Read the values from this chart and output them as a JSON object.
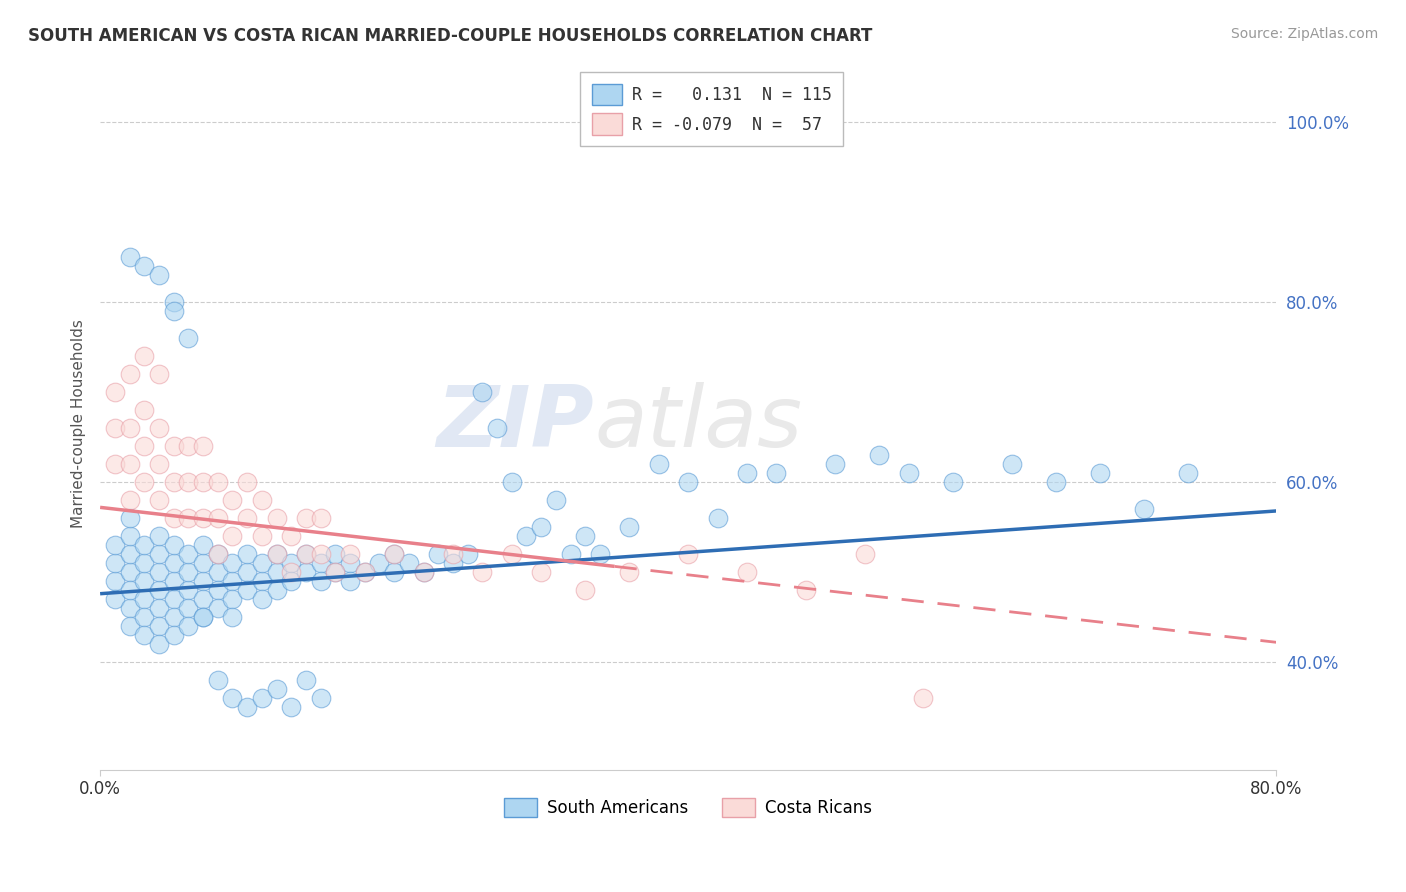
{
  "title": "SOUTH AMERICAN VS COSTA RICAN MARRIED-COUPLE HOUSEHOLDS CORRELATION CHART",
  "source_text": "Source: ZipAtlas.com",
  "ylabel": "Married-couple Households",
  "ytick_labels": [
    "100.0%",
    "80.0%",
    "60.0%",
    "40.0%"
  ],
  "ytick_vals": [
    1.0,
    0.8,
    0.6,
    0.4
  ],
  "xlim": [
    0.0,
    0.8
  ],
  "ylim": [
    0.28,
    1.05
  ],
  "legend_r1": "R =   0.131",
  "legend_n1": "N = 115",
  "legend_r2": "R = -0.079",
  "legend_n2": "N =  57",
  "legend_label1": "South Americans",
  "legend_label2": "Costa Ricans",
  "color_blue_fill": "#AED6F1",
  "color_blue_edge": "#5B9BD5",
  "color_pink_fill": "#FADBD8",
  "color_pink_edge": "#E8A0A8",
  "color_blue_line": "#2E6DB4",
  "color_pink_line": "#E8808A",
  "color_title": "#333333",
  "color_source": "#999999",
  "color_yticks": "#4472C4",
  "watermark": "ZIPatlas",
  "sa_line_x0": 0.0,
  "sa_line_y0": 0.476,
  "sa_line_x1": 0.8,
  "sa_line_y1": 0.568,
  "cr_line_x0": 0.0,
  "cr_line_y0": 0.572,
  "cr_line_x1": 0.8,
  "cr_line_y1": 0.422,
  "south_american_x": [
    0.01,
    0.01,
    0.01,
    0.01,
    0.02,
    0.02,
    0.02,
    0.02,
    0.02,
    0.02,
    0.02,
    0.03,
    0.03,
    0.03,
    0.03,
    0.03,
    0.03,
    0.04,
    0.04,
    0.04,
    0.04,
    0.04,
    0.04,
    0.04,
    0.05,
    0.05,
    0.05,
    0.05,
    0.05,
    0.05,
    0.06,
    0.06,
    0.06,
    0.06,
    0.06,
    0.07,
    0.07,
    0.07,
    0.07,
    0.07,
    0.08,
    0.08,
    0.08,
    0.08,
    0.09,
    0.09,
    0.09,
    0.09,
    0.1,
    0.1,
    0.1,
    0.11,
    0.11,
    0.11,
    0.12,
    0.12,
    0.12,
    0.13,
    0.13,
    0.14,
    0.14,
    0.15,
    0.15,
    0.16,
    0.16,
    0.17,
    0.17,
    0.18,
    0.19,
    0.2,
    0.2,
    0.21,
    0.22,
    0.23,
    0.24,
    0.25,
    0.26,
    0.27,
    0.28,
    0.29,
    0.3,
    0.31,
    0.32,
    0.33,
    0.34,
    0.36,
    0.38,
    0.4,
    0.42,
    0.44,
    0.46,
    0.5,
    0.53,
    0.55,
    0.58,
    0.62,
    0.65,
    0.68,
    0.71,
    0.74,
    0.02,
    0.03,
    0.04,
    0.05,
    0.05,
    0.06,
    0.07,
    0.08,
    0.09,
    0.1,
    0.11,
    0.12,
    0.13,
    0.14,
    0.15
  ],
  "south_american_y": [
    0.49,
    0.51,
    0.47,
    0.53,
    0.46,
    0.5,
    0.48,
    0.52,
    0.44,
    0.54,
    0.56,
    0.47,
    0.49,
    0.51,
    0.45,
    0.53,
    0.43,
    0.48,
    0.5,
    0.46,
    0.52,
    0.44,
    0.54,
    0.42,
    0.47,
    0.49,
    0.51,
    0.45,
    0.43,
    0.53,
    0.48,
    0.5,
    0.46,
    0.52,
    0.44,
    0.49,
    0.51,
    0.47,
    0.45,
    0.53,
    0.5,
    0.48,
    0.52,
    0.46,
    0.49,
    0.51,
    0.47,
    0.45,
    0.5,
    0.48,
    0.52,
    0.49,
    0.51,
    0.47,
    0.5,
    0.48,
    0.52,
    0.51,
    0.49,
    0.5,
    0.52,
    0.51,
    0.49,
    0.5,
    0.52,
    0.51,
    0.49,
    0.5,
    0.51,
    0.52,
    0.5,
    0.51,
    0.5,
    0.52,
    0.51,
    0.52,
    0.7,
    0.66,
    0.6,
    0.54,
    0.55,
    0.58,
    0.52,
    0.54,
    0.52,
    0.55,
    0.62,
    0.6,
    0.56,
    0.61,
    0.61,
    0.62,
    0.63,
    0.61,
    0.6,
    0.62,
    0.6,
    0.61,
    0.57,
    0.61,
    0.85,
    0.84,
    0.83,
    0.8,
    0.79,
    0.76,
    0.45,
    0.38,
    0.36,
    0.35,
    0.36,
    0.37,
    0.35,
    0.38,
    0.36
  ],
  "costa_rican_x": [
    0.01,
    0.01,
    0.01,
    0.02,
    0.02,
    0.02,
    0.02,
    0.03,
    0.03,
    0.03,
    0.03,
    0.04,
    0.04,
    0.04,
    0.04,
    0.05,
    0.05,
    0.05,
    0.06,
    0.06,
    0.06,
    0.07,
    0.07,
    0.07,
    0.08,
    0.08,
    0.08,
    0.09,
    0.09,
    0.1,
    0.1,
    0.11,
    0.11,
    0.12,
    0.12,
    0.13,
    0.13,
    0.14,
    0.14,
    0.15,
    0.15,
    0.16,
    0.17,
    0.18,
    0.2,
    0.22,
    0.24,
    0.26,
    0.28,
    0.3,
    0.33,
    0.36,
    0.4,
    0.44,
    0.48,
    0.52,
    0.56
  ],
  "costa_rican_y": [
    0.62,
    0.66,
    0.7,
    0.58,
    0.62,
    0.66,
    0.72,
    0.6,
    0.64,
    0.68,
    0.74,
    0.58,
    0.62,
    0.66,
    0.72,
    0.56,
    0.6,
    0.64,
    0.56,
    0.6,
    0.64,
    0.56,
    0.6,
    0.64,
    0.56,
    0.6,
    0.52,
    0.54,
    0.58,
    0.56,
    0.6,
    0.54,
    0.58,
    0.52,
    0.56,
    0.54,
    0.5,
    0.52,
    0.56,
    0.52,
    0.56,
    0.5,
    0.52,
    0.5,
    0.52,
    0.5,
    0.52,
    0.5,
    0.52,
    0.5,
    0.48,
    0.5,
    0.52,
    0.5,
    0.48,
    0.52,
    0.36
  ]
}
